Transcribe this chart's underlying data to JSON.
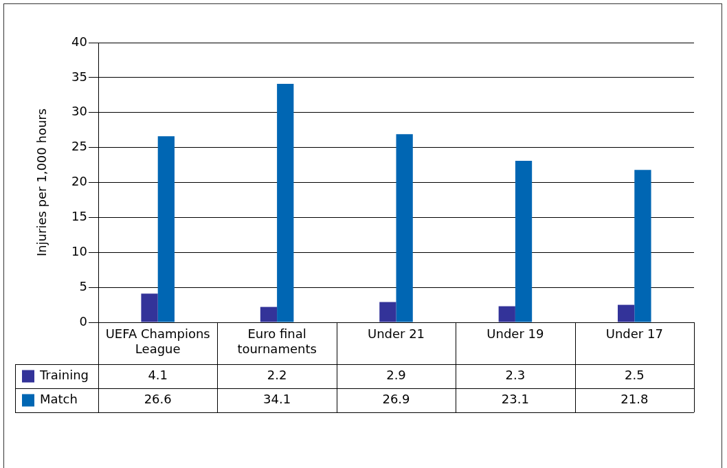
{
  "chart_data": {
    "type": "bar",
    "ylabel": "Injuries per 1,000 hours",
    "categories": [
      "UEFA Champions League",
      "Euro final tournaments",
      "Under 21",
      "Under 19",
      "Under 17"
    ],
    "series": [
      {
        "name": "Training",
        "color": "#333399",
        "values": [
          4.1,
          2.2,
          2.9,
          2.3,
          2.5
        ]
      },
      {
        "name": "Match",
        "color": "#0066b3",
        "values": [
          26.6,
          34.1,
          26.9,
          23.1,
          21.8
        ]
      }
    ],
    "ylim": [
      0,
      40
    ],
    "yticks": [
      0,
      5,
      10,
      15,
      20,
      25,
      30,
      35,
      40
    ],
    "grid": "y",
    "data_labels": true,
    "legend": "bottom left"
  }
}
